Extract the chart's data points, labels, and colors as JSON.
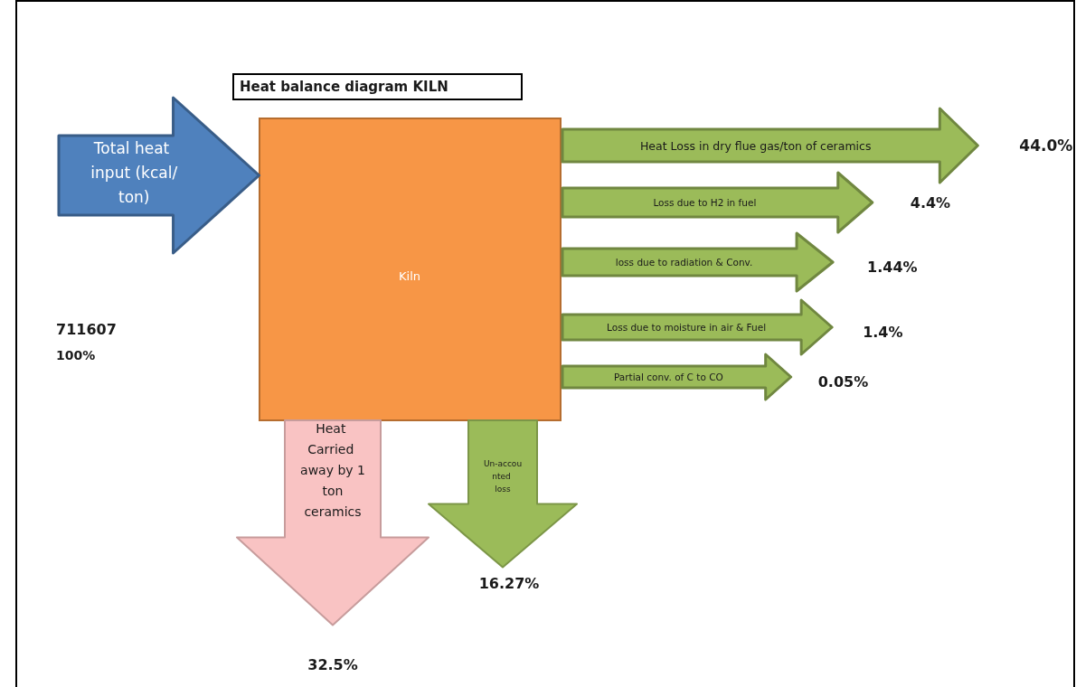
{
  "chart_data": {
    "type": "other",
    "title": "Heat balance diagram KILN",
    "categories": [
      "Total heat input (kcal/ton)",
      "Heat Loss in dry flue gas/ton of ceramics",
      "Loss due to H2 in fuel",
      "loss due to radiation & Conv.",
      "Loss due to moisture in air & Fuel",
      "Partial conv. of C to CO",
      "Heat Carried away by 1 ton ceramics",
      "Un-accounted loss"
    ],
    "values": [
      100,
      44.0,
      4.4,
      1.44,
      1.4,
      0.05,
      32.5,
      16.27
    ],
    "value_labels": [
      "100%",
      "44.0%",
      "4.4%",
      "1.44%",
      "1.4%",
      "0.05%",
      "32.5%",
      "16.27%"
    ],
    "colors": [
      "#4f81bd",
      "#9bbb59",
      "#9bbb59",
      "#9bbb59",
      "#9bbb59",
      "#9bbb59",
      "#f9c3c3",
      "#9bbb59"
    ],
    "annotations": [
      "Kiln",
      "711607"
    ]
  }
}
